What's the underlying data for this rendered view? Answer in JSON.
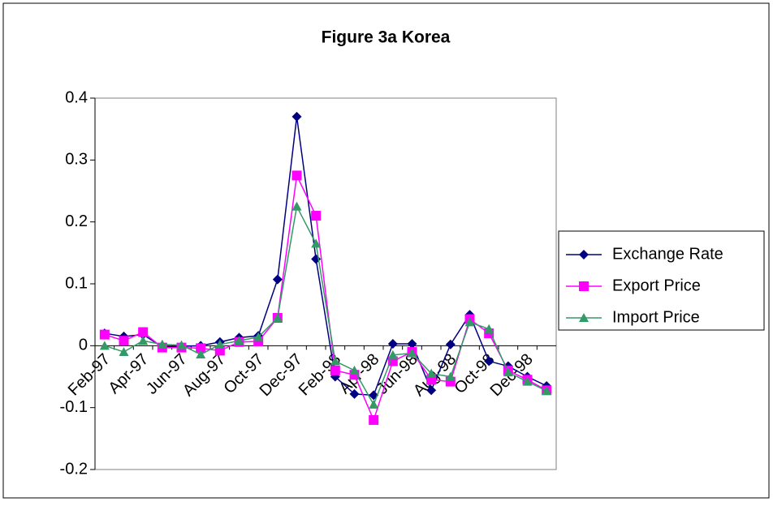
{
  "chart_data": {
    "type": "line",
    "title": "Figure 3a Korea",
    "categories": [
      "Feb-97",
      null,
      "Apr-97",
      null,
      "Jun-97",
      null,
      "Aug-97",
      null,
      "Oct-97",
      null,
      "Dec-97",
      null,
      "Feb-98",
      null,
      "Apr-98",
      null,
      "Jun-98",
      null,
      "Aug-98",
      null,
      "Oct-98",
      null,
      "Dec-98",
      null
    ],
    "series": [
      {
        "name": "Exchange Rate",
        "color": "#000080",
        "marker": "diamond",
        "values": [
          0.02,
          0.015,
          0.018,
          -0.002,
          -0.001,
          0.0,
          0.006,
          0.013,
          0.016,
          0.107,
          0.37,
          0.14,
          -0.05,
          -0.078,
          -0.08,
          0.003,
          0.003,
          -0.072,
          0.002,
          0.05,
          -0.025,
          -0.033,
          -0.05,
          -0.065
        ]
      },
      {
        "name": "Export Price",
        "color": "#ff00ff",
        "marker": "square",
        "values": [
          0.018,
          0.008,
          0.022,
          -0.003,
          -0.003,
          -0.004,
          -0.008,
          0.006,
          0.007,
          0.045,
          0.275,
          0.21,
          -0.04,
          -0.047,
          -0.12,
          -0.025,
          -0.01,
          -0.055,
          -0.058,
          0.043,
          0.02,
          -0.04,
          -0.055,
          -0.072
        ]
      },
      {
        "name": "Import Price",
        "color": "#339966",
        "marker": "triangle",
        "values": [
          0.0,
          -0.01,
          0.008,
          0.002,
          0.001,
          -0.014,
          0.002,
          0.008,
          0.014,
          0.045,
          0.225,
          0.165,
          -0.025,
          -0.04,
          -0.095,
          -0.015,
          -0.012,
          -0.045,
          -0.05,
          0.038,
          0.027,
          -0.043,
          -0.058,
          -0.073
        ]
      }
    ],
    "ylim": [
      -0.2,
      0.4
    ],
    "yticks": [
      -0.2,
      -0.1,
      0,
      0.1,
      0.2,
      0.3,
      0.4
    ],
    "grid": false,
    "legend": "right"
  }
}
